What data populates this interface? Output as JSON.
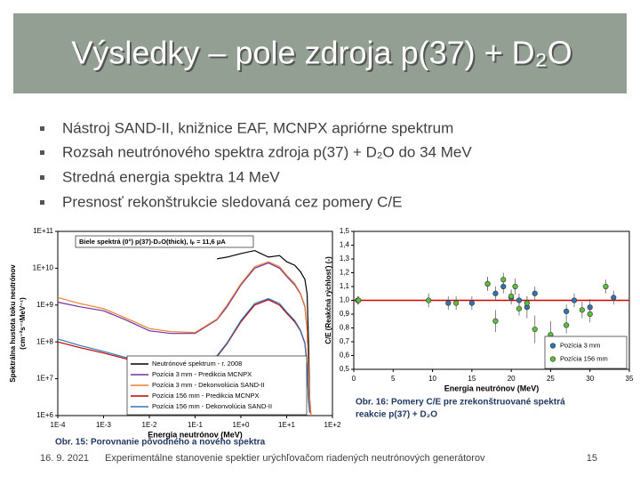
{
  "slide": {
    "title": "Výsledky – pole zdroja p(37) + D₂O",
    "bullets": [
      "Nástroj SAND-II, knižnice EAF, MCNPX apriórne spektrum",
      "Rozsah neutrónového spektra zdroja p(37) + D₂O do 34 MeV",
      "Stredná energia spektra 14 MeV",
      "Presnosť rekonštrukcie sledovaná cez pomery C/E"
    ],
    "captions": [
      "Obr. 15: Porovnanie pôvodného a nového spektra",
      "Obr. 16: Pomery C/E pre zrekonštruované spektrá",
      "reakcie p(37) + D₂O"
    ],
    "footer": {
      "date": "16. 9. 2021",
      "text": "Experimentálne stanovenie spektier urýchľovačom riadených neutrónových generátorov",
      "page": "15"
    }
  },
  "chart_data": [
    {
      "type": "line",
      "log_x": true,
      "log_y": true,
      "annotation": "Biele spektrá (0°)   p(37)-D₂O(thick),   Iₚ = 11,6 μA",
      "x_label": "Energia neutrónov (MeV)",
      "y_label": [
        "Spektrálna hustota toku neutrónov",
        "(cm⁻²s⁻¹MeV⁻¹)"
      ],
      "xlim": [
        0.0001,
        100
      ],
      "ylim": [
        1000000,
        100000000000
      ],
      "xticks": [
        {
          "value": 0.0001,
          "label": "1E-4"
        },
        {
          "value": 0.001,
          "label": "1E-3"
        },
        {
          "value": 0.01,
          "label": "1E-2"
        },
        {
          "value": 0.1,
          "label": "1E-1"
        },
        {
          "value": 1,
          "label": "1E+0"
        },
        {
          "value": 10,
          "label": "1E+1"
        },
        {
          "value": 100,
          "label": "1E+2"
        }
      ],
      "yticks": [
        {
          "value": 1000000,
          "label": "1E+6"
        },
        {
          "value": 10000000,
          "label": "1E+7"
        },
        {
          "value": 100000000,
          "label": "1E+8"
        },
        {
          "value": 1000000000,
          "label": "1E+9"
        },
        {
          "value": 10000000000,
          "label": "1E+10"
        },
        {
          "value": 100000000000,
          "label": "1E+11"
        }
      ],
      "x": [
        0.0001,
        0.0003,
        0.001,
        0.003,
        0.01,
        0.03,
        0.1,
        0.3,
        0.5,
        1,
        2,
        4,
        7,
        10,
        15,
        20,
        25,
        28,
        30,
        32,
        34
      ],
      "series": [
        {
          "name": "Neutrónové spektrum - r. 2008",
          "color": "#000000",
          "values": [
            null,
            null,
            null,
            null,
            null,
            null,
            null,
            18000000000,
            20000000000,
            25000000000,
            30000000000,
            20000000000,
            22000000000,
            15000000000,
            12000000000,
            8000000000,
            5000000000,
            2000000000,
            100000000,
            2000000,
            null
          ]
        },
        {
          "name": "Pozícia 3 mm - Predikcia MCNPX",
          "color": "#7030a0",
          "values": [
            1200000000,
            900000000,
            700000000,
            400000000,
            200000000,
            170000000,
            170000000,
            400000000,
            900000000,
            3500000000,
            10000000000,
            14000000000,
            10000000000,
            6000000000,
            3500000000,
            2000000000,
            900000000,
            200000000,
            14000000,
            2600000,
            1000000
          ]
        },
        {
          "name": "Pozícia 3 mm - Dekonvolúcia SAND-II",
          "color": "#ed7d31",
          "values": [
            1600000000,
            1100000000,
            800000000,
            450000000,
            230000000,
            190000000,
            180000000,
            420000000,
            1000000000,
            3800000000,
            11000000000,
            15000000000,
            11000000000,
            6500000000,
            3800000000,
            2100000000,
            950000000,
            220000000,
            16000000,
            2800000,
            1000000
          ]
        },
        {
          "name": "Pozícia 156 mm - Predikcia MCNPX",
          "color": "#c00000",
          "values": [
            100000000,
            70000000,
            50000000,
            35000000,
            25000000,
            22000000,
            22000000,
            40000000,
            90000000,
            350000000,
            1000000000,
            1400000000,
            1000000000,
            600000000,
            350000000,
            200000000,
            90000000,
            20000000,
            2500000,
            1200000,
            null
          ]
        },
        {
          "name": "Pozícia 156 mm - Dekonvolúcia SAND-II",
          "color": "#2e75b6",
          "values": [
            120000000,
            80000000,
            55000000,
            38000000,
            27000000,
            23000000,
            23000000,
            42000000,
            95000000,
            380000000,
            1100000000,
            1500000000,
            1100000000,
            650000000,
            380000000,
            210000000,
            95000000,
            22000000,
            2800000,
            1300000,
            null
          ]
        }
      ]
    },
    {
      "type": "scatter",
      "x_label": "Energia neutrónov (MeV)",
      "y_label": [
        "C/E (Reakčná rýchlosť) (-)"
      ],
      "xlim": [
        0,
        35
      ],
      "ylim": [
        0.5,
        1.5
      ],
      "xticks": [
        0,
        5,
        10,
        15,
        20,
        25,
        30,
        35
      ],
      "yticks": [
        {
          "value": 0.5,
          "label": "0,5"
        },
        {
          "value": 0.6,
          "label": "0,6"
        },
        {
          "value": 0.7,
          "label": "0,7"
        },
        {
          "value": 0.8,
          "label": "0,8"
        },
        {
          "value": 0.9,
          "label": "0,9"
        },
        {
          "value": 1.0,
          "label": "1,0"
        },
        {
          "value": 1.1,
          "label": "1,1"
        },
        {
          "value": 1.2,
          "label": "1,2"
        },
        {
          "value": 1.3,
          "label": "1,3"
        },
        {
          "value": 1.4,
          "label": "1,4"
        },
        {
          "value": 1.5,
          "label": "1,5"
        }
      ],
      "reference_line": 1,
      "reference_color": "#d00000",
      "series": [
        {
          "name": "Pozícia 3 mm",
          "color": "#2e75b6",
          "x": [
            0.5,
            12,
            15,
            17,
            18,
            19,
            20,
            21,
            22,
            23,
            27,
            28,
            30,
            33
          ],
          "values": [
            1.0,
            0.98,
            0.98,
            1.12,
            1.05,
            1.1,
            1.02,
            1.0,
            0.95,
            1.05,
            0.92,
            1.0,
            0.95,
            1.02
          ],
          "errors": [
            0.03,
            0.05,
            0.05,
            0.05,
            0.05,
            0.05,
            0.05,
            0.05,
            0.08,
            0.05,
            0.05,
            0.05,
            0.06,
            0.05
          ]
        },
        {
          "name": "Pozícia 156 mm",
          "color": "#5bbf3c",
          "x": [
            0.6,
            9.5,
            13,
            17,
            18,
            19,
            20,
            20.5,
            21,
            22,
            23,
            25,
            27,
            29,
            30,
            32
          ],
          "values": [
            1.0,
            1.0,
            0.98,
            1.12,
            0.85,
            1.15,
            1.03,
            1.1,
            0.94,
            0.98,
            0.79,
            0.75,
            0.82,
            0.93,
            0.9,
            1.1
          ],
          "errors": [
            0.03,
            0.05,
            0.05,
            0.05,
            0.08,
            0.05,
            0.05,
            0.06,
            0.05,
            0.05,
            0.1,
            0.1,
            0.06,
            0.06,
            0.06,
            0.05
          ]
        }
      ]
    }
  ]
}
